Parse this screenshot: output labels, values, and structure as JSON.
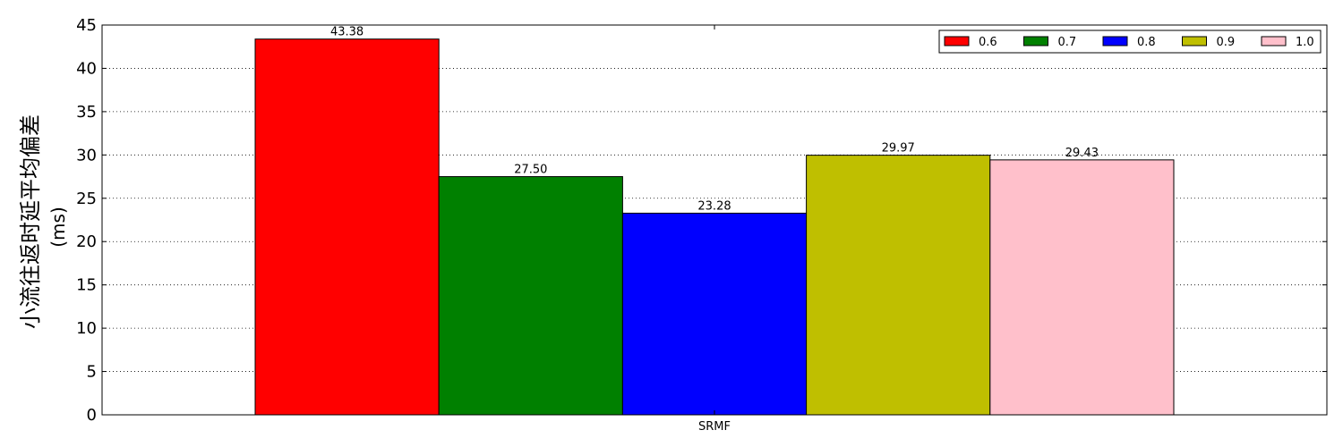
{
  "chart_data": {
    "type": "bar",
    "title": "",
    "xlabel": "",
    "ylabel": "小流往返时延平均偏差",
    "ylabel_unit": "(ms)",
    "categories": [
      "SRMF"
    ],
    "series": [
      {
        "name": "0.6",
        "values": [
          43.38
        ],
        "value_labels": [
          "43.38"
        ],
        "color": "#ff0000"
      },
      {
        "name": "0.7",
        "values": [
          27.5
        ],
        "value_labels": [
          "27.50"
        ],
        "color": "#008000"
      },
      {
        "name": "0.8",
        "values": [
          23.28
        ],
        "value_labels": [
          "23.28"
        ],
        "color": "#0000ff"
      },
      {
        "name": "0.9",
        "values": [
          29.97
        ],
        "value_labels": [
          "29.97"
        ],
        "color": "#bfbf00"
      },
      {
        "name": "1.0",
        "values": [
          29.43
        ],
        "value_labels": [
          "29.43"
        ],
        "color": "#ffc0cb"
      }
    ],
    "ylim": [
      0,
      45
    ],
    "yticks": [
      0,
      5,
      10,
      15,
      20,
      25,
      30,
      35,
      40,
      45
    ],
    "ytick_labels": [
      "0",
      "5",
      "10",
      "15",
      "20",
      "25",
      "30",
      "35",
      "40",
      "45"
    ],
    "grid": "y-dotted",
    "legend_position": "top-right",
    "legend_columns": 5
  }
}
